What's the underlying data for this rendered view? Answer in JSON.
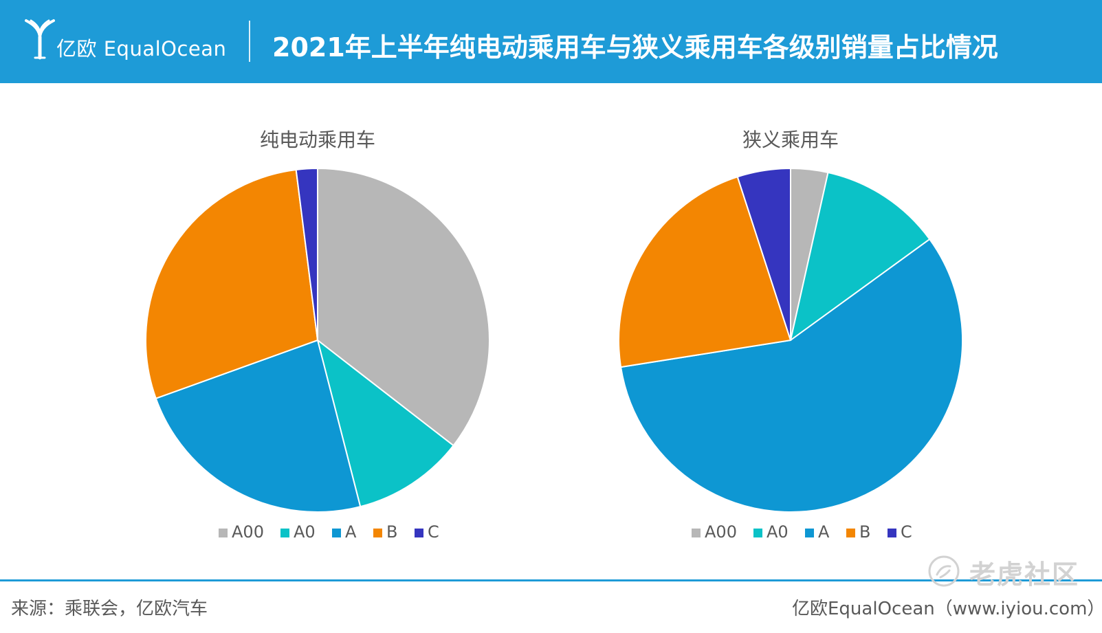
{
  "header": {
    "brand": "亿欧 EqualOcean",
    "title": "2021年上半年纯电动乘用车与狭义乘用车各级别销量占比情况"
  },
  "colors": {
    "header_bg": "#1e9bd7",
    "A00": "#b7b7b7",
    "A0": "#0bc2c7",
    "A": "#0e97d3",
    "B": "#f38602",
    "C": "#3535bf"
  },
  "chart_data": [
    {
      "type": "pie",
      "title": "纯电动乘用车",
      "categories": [
        "A00",
        "A0",
        "A",
        "B",
        "C"
      ],
      "values": [
        35.5,
        10.5,
        23.5,
        28.5,
        2.0
      ],
      "unit": "%",
      "start_angle_deg": 0,
      "direction": "clockwise",
      "legend": "bottom"
    },
    {
      "type": "pie",
      "title": "狭义乘用车",
      "categories": [
        "A00",
        "A0",
        "A",
        "B",
        "C"
      ],
      "values": [
        3.5,
        11.5,
        57.5,
        22.5,
        5.0
      ],
      "unit": "%",
      "start_angle_deg": 0,
      "direction": "clockwise",
      "legend": "bottom"
    }
  ],
  "footer": {
    "source": "来源：乘联会，亿欧汽车",
    "credit": "亿欧EqualOcean（www.iyiou.com）",
    "watermark": "老虎社区"
  }
}
